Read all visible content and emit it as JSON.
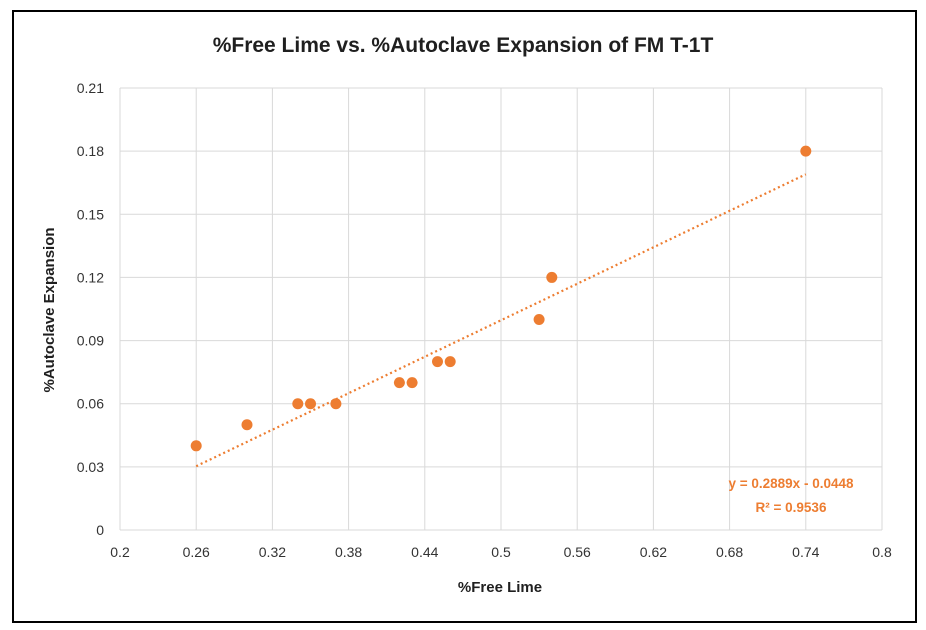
{
  "chart_data": {
    "type": "scatter",
    "title": "%Free Lime vs. %Autoclave Expansion of FM T-1T",
    "xlabel": "%Free Lime",
    "ylabel": "%Autoclave Expansion",
    "xlim": [
      0.2,
      0.8
    ],
    "ylim": [
      0,
      0.21
    ],
    "x_ticks": [
      "0.2",
      "0.26",
      "0.32",
      "0.38",
      "0.44",
      "0.5",
      "0.56",
      "0.62",
      "0.68",
      "0.74",
      "0.8"
    ],
    "y_ticks": [
      "0",
      "0.03",
      "0.06",
      "0.09",
      "0.12",
      "0.15",
      "0.18",
      "0.21"
    ],
    "grid": true,
    "series": [
      {
        "color": "#ed7d31",
        "points": [
          {
            "x": 0.26,
            "y": 0.04
          },
          {
            "x": 0.3,
            "y": 0.05
          },
          {
            "x": 0.34,
            "y": 0.06
          },
          {
            "x": 0.35,
            "y": 0.06
          },
          {
            "x": 0.37,
            "y": 0.06
          },
          {
            "x": 0.42,
            "y": 0.07
          },
          {
            "x": 0.43,
            "y": 0.07
          },
          {
            "x": 0.45,
            "y": 0.08
          },
          {
            "x": 0.46,
            "y": 0.08
          },
          {
            "x": 0.53,
            "y": 0.1
          },
          {
            "x": 0.54,
            "y": 0.12
          },
          {
            "x": 0.74,
            "y": 0.18
          }
        ]
      }
    ],
    "trendline": {
      "type": "linear",
      "slope": 0.2889,
      "intercept": -0.0448,
      "x_range": [
        0.26,
        0.74
      ],
      "style": "dotted",
      "color": "#ed7d31",
      "equation_label": "y = 0.2889x - 0.0448",
      "r2_label": "R² = 0.9536"
    }
  }
}
